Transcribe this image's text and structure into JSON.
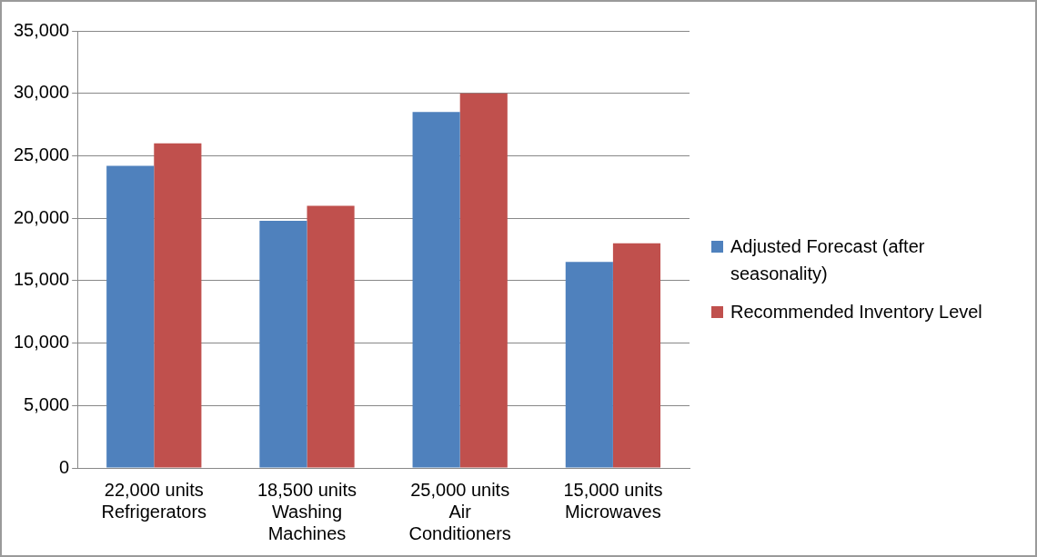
{
  "chart_data": {
    "type": "bar",
    "categories": [
      "22,000 units\nRefrigerators",
      "18,500 units\nWashing\nMachines",
      "25,000 units\nAir\nConditioners",
      "15,000 units\nMicrowaves"
    ],
    "series": [
      {
        "name": "Adjusted Forecast (after seasonality)",
        "color": "#4f81bd",
        "values": [
          24200,
          19800,
          28500,
          16500
        ]
      },
      {
        "name": "Recommended Inventory Level",
        "color": "#c0504d",
        "values": [
          26000,
          21000,
          30000,
          18000
        ]
      }
    ],
    "ylim": [
      0,
      35000
    ],
    "yticks": [
      {
        "value": 0,
        "label": "0"
      },
      {
        "value": 5000,
        "label": "5,000"
      },
      {
        "value": 10000,
        "label": "10,000"
      },
      {
        "value": 15000,
        "label": "15,000"
      },
      {
        "value": 20000,
        "label": "20,000"
      },
      {
        "value": 25000,
        "label": "25,000"
      },
      {
        "value": 30000,
        "label": "30,000"
      },
      {
        "value": 35000,
        "label": "35,000"
      }
    ],
    "grid": "y",
    "legend": "right"
  }
}
